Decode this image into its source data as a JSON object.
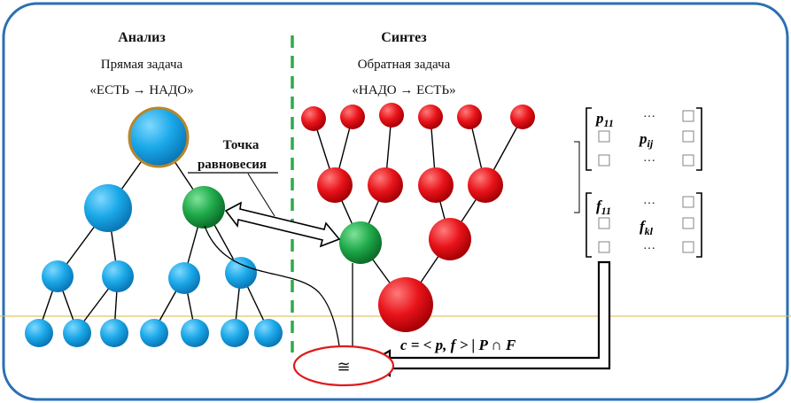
{
  "analysis": {
    "title": "Анализ",
    "subtitle": "Прямая задача",
    "formula": "«ЕСТЬ → НАДО»"
  },
  "synthesis": {
    "title": "Синтез",
    "subtitle": "Обратная задача",
    "formula": "«НАДО → ЕСТЬ»"
  },
  "equilibrium": {
    "line1": "Точка",
    "line2": "равновесия"
  },
  "matrix_p": {
    "top_left": "p",
    "top_left_sub": "11",
    "center": "p",
    "center_sub": "ij",
    "dots": "···"
  },
  "matrix_f": {
    "top_left": "f",
    "top_left_sub": "11",
    "center": "f",
    "center_sub": "kl",
    "dots": "···"
  },
  "formula": "c = < p, f > | P ∩ F",
  "result_symbol": "≅",
  "colors": {
    "frame": "#2a6fb5",
    "blue_node": "#1aa8e8",
    "gold_border": "#b8862a",
    "green_node": "#1faa4a",
    "red_node": "#e8141a",
    "divider": "#2eaa4a",
    "baseline": "#d9b64a",
    "ellipse": "#e01a1a"
  }
}
